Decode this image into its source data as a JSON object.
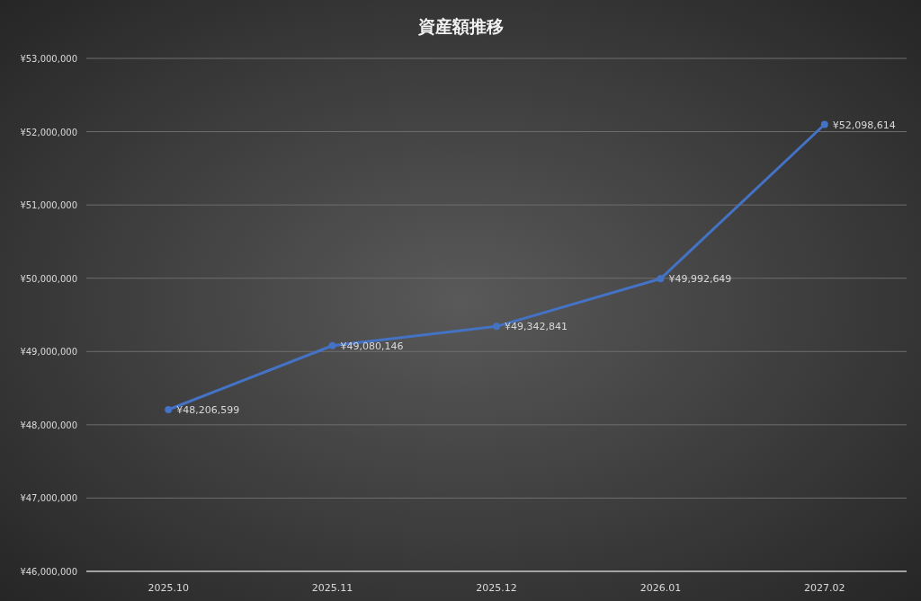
{
  "chart_data": {
    "type": "line",
    "title": "資産額推移",
    "categories": [
      "2025.10",
      "2025.11",
      "2025.12",
      "2026.01",
      "2027.02"
    ],
    "series": [
      {
        "color": "#4472c4",
        "values": [
          48206599,
          49080146,
          49342841,
          49992649,
          52098614
        ],
        "value_labels": [
          "¥48,206,599",
          "¥49,080,146",
          "¥49,342,841",
          "¥49,992,649",
          "¥52,098,614"
        ]
      }
    ],
    "ylim": [
      46000000,
      53000000
    ],
    "yticks": [
      {
        "value": 46000000,
        "label": "¥46,000,000"
      },
      {
        "value": 47000000,
        "label": "¥47,000,000"
      },
      {
        "value": 48000000,
        "label": "¥48,000,000"
      },
      {
        "value": 49000000,
        "label": "¥49,000,000"
      },
      {
        "value": 50000000,
        "label": "¥50,000,000"
      },
      {
        "value": 51000000,
        "label": "¥51,000,000"
      },
      {
        "value": 52000000,
        "label": "¥52,000,000"
      },
      {
        "value": 53000000,
        "label": "¥53,000,000"
      }
    ],
    "grid": "y",
    "marker": "circle",
    "line_style": "solid"
  }
}
